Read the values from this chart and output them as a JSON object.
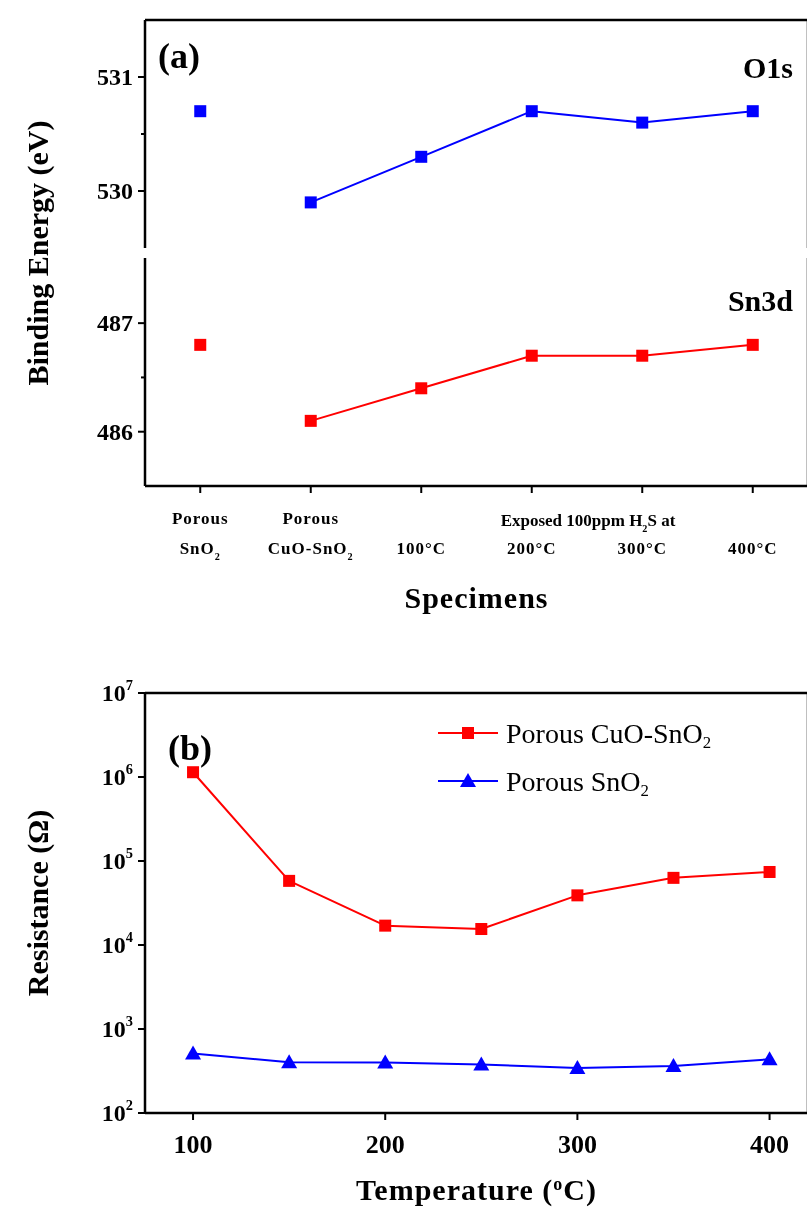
{
  "chart_data": [
    {
      "type": "line",
      "ylabel": "Binding Energy (eV)",
      "annotations": [
        "(a)",
        "O1s"
      ],
      "categories": [
        null,
        null,
        null,
        null,
        null,
        null
      ],
      "series": [
        {
          "color": "#0000ff",
          "values": [
            530.7,
            null,
            null,
            null,
            null,
            null
          ]
        },
        {
          "color": "#0000ff",
          "values": [
            null,
            529.9,
            530.3,
            530.7,
            530.6,
            530.7
          ]
        }
      ],
      "ylim": [
        529.5,
        531.5
      ],
      "yticks": [
        {
          "value": 530,
          "label": "530"
        },
        {
          "value": 530.5,
          "label": null
        },
        {
          "value": 531,
          "label": "531"
        }
      ],
      "marker": "square",
      "tick_labels": "y"
    },
    {
      "type": "line",
      "xlabel": "Specimens",
      "annotations": [
        "Sn3d",
        "Exposed 100ppm H$_{2}$S at"
      ],
      "categories": [
        "Porous\nSnO$_{2}$",
        "Porous\nCuO-SnO$_{2}$",
        "100°C",
        "200°C",
        "300°C",
        "400°C"
      ],
      "series": [
        {
          "color": "#ff0000",
          "values": [
            486.8,
            null,
            null,
            null,
            null,
            null
          ]
        },
        {
          "color": "#ff0000",
          "values": [
            null,
            486.1,
            486.4,
            486.7,
            486.7,
            486.8
          ]
        }
      ],
      "ylim": [
        485.5,
        487.6
      ],
      "yticks": [
        {
          "value": 486,
          "label": "486"
        },
        {
          "value": 486.5,
          "label": null
        },
        {
          "value": 487,
          "label": "487"
        }
      ],
      "marker": "square"
    },
    {
      "type": "line",
      "xlabel": "Temperature ($^{o}$C)",
      "ylabel": "Resistance (Ω)",
      "annotations": [
        "(b)"
      ],
      "x": [
        100,
        150,
        200,
        250,
        300,
        350,
        400
      ],
      "series": [
        {
          "name": "Porous CuO-SnO$_{2}$",
          "color": "#ff0000",
          "marker": "square",
          "values": [
            1140000,
            58000,
            17000,
            15500,
            39000,
            63000,
            74000
          ]
        },
        {
          "name": "Porous SnO$_{2}$",
          "color": "#0000ff",
          "marker": "triangle",
          "values": [
            510,
            403,
            400,
            377,
            344,
            363,
            436
          ]
        }
      ],
      "xlim": [
        75,
        420
      ],
      "xticks": [
        100,
        200,
        300,
        400
      ],
      "ylim": [
        100,
        10000000
      ],
      "yticks": [
        {
          "value": 100,
          "label": "10$^{2}$"
        },
        {
          "value": 1000,
          "label": "10$^{3}$"
        },
        {
          "value": 10000,
          "label": "10$^{4}$"
        },
        {
          "value": 100000,
          "label": "10$^{5}$"
        },
        {
          "value": 1000000,
          "label": "10$^{6}$"
        },
        {
          "value": 10000000,
          "label": "10$^{7}$"
        }
      ],
      "log": true,
      "legend": "top right"
    }
  ]
}
